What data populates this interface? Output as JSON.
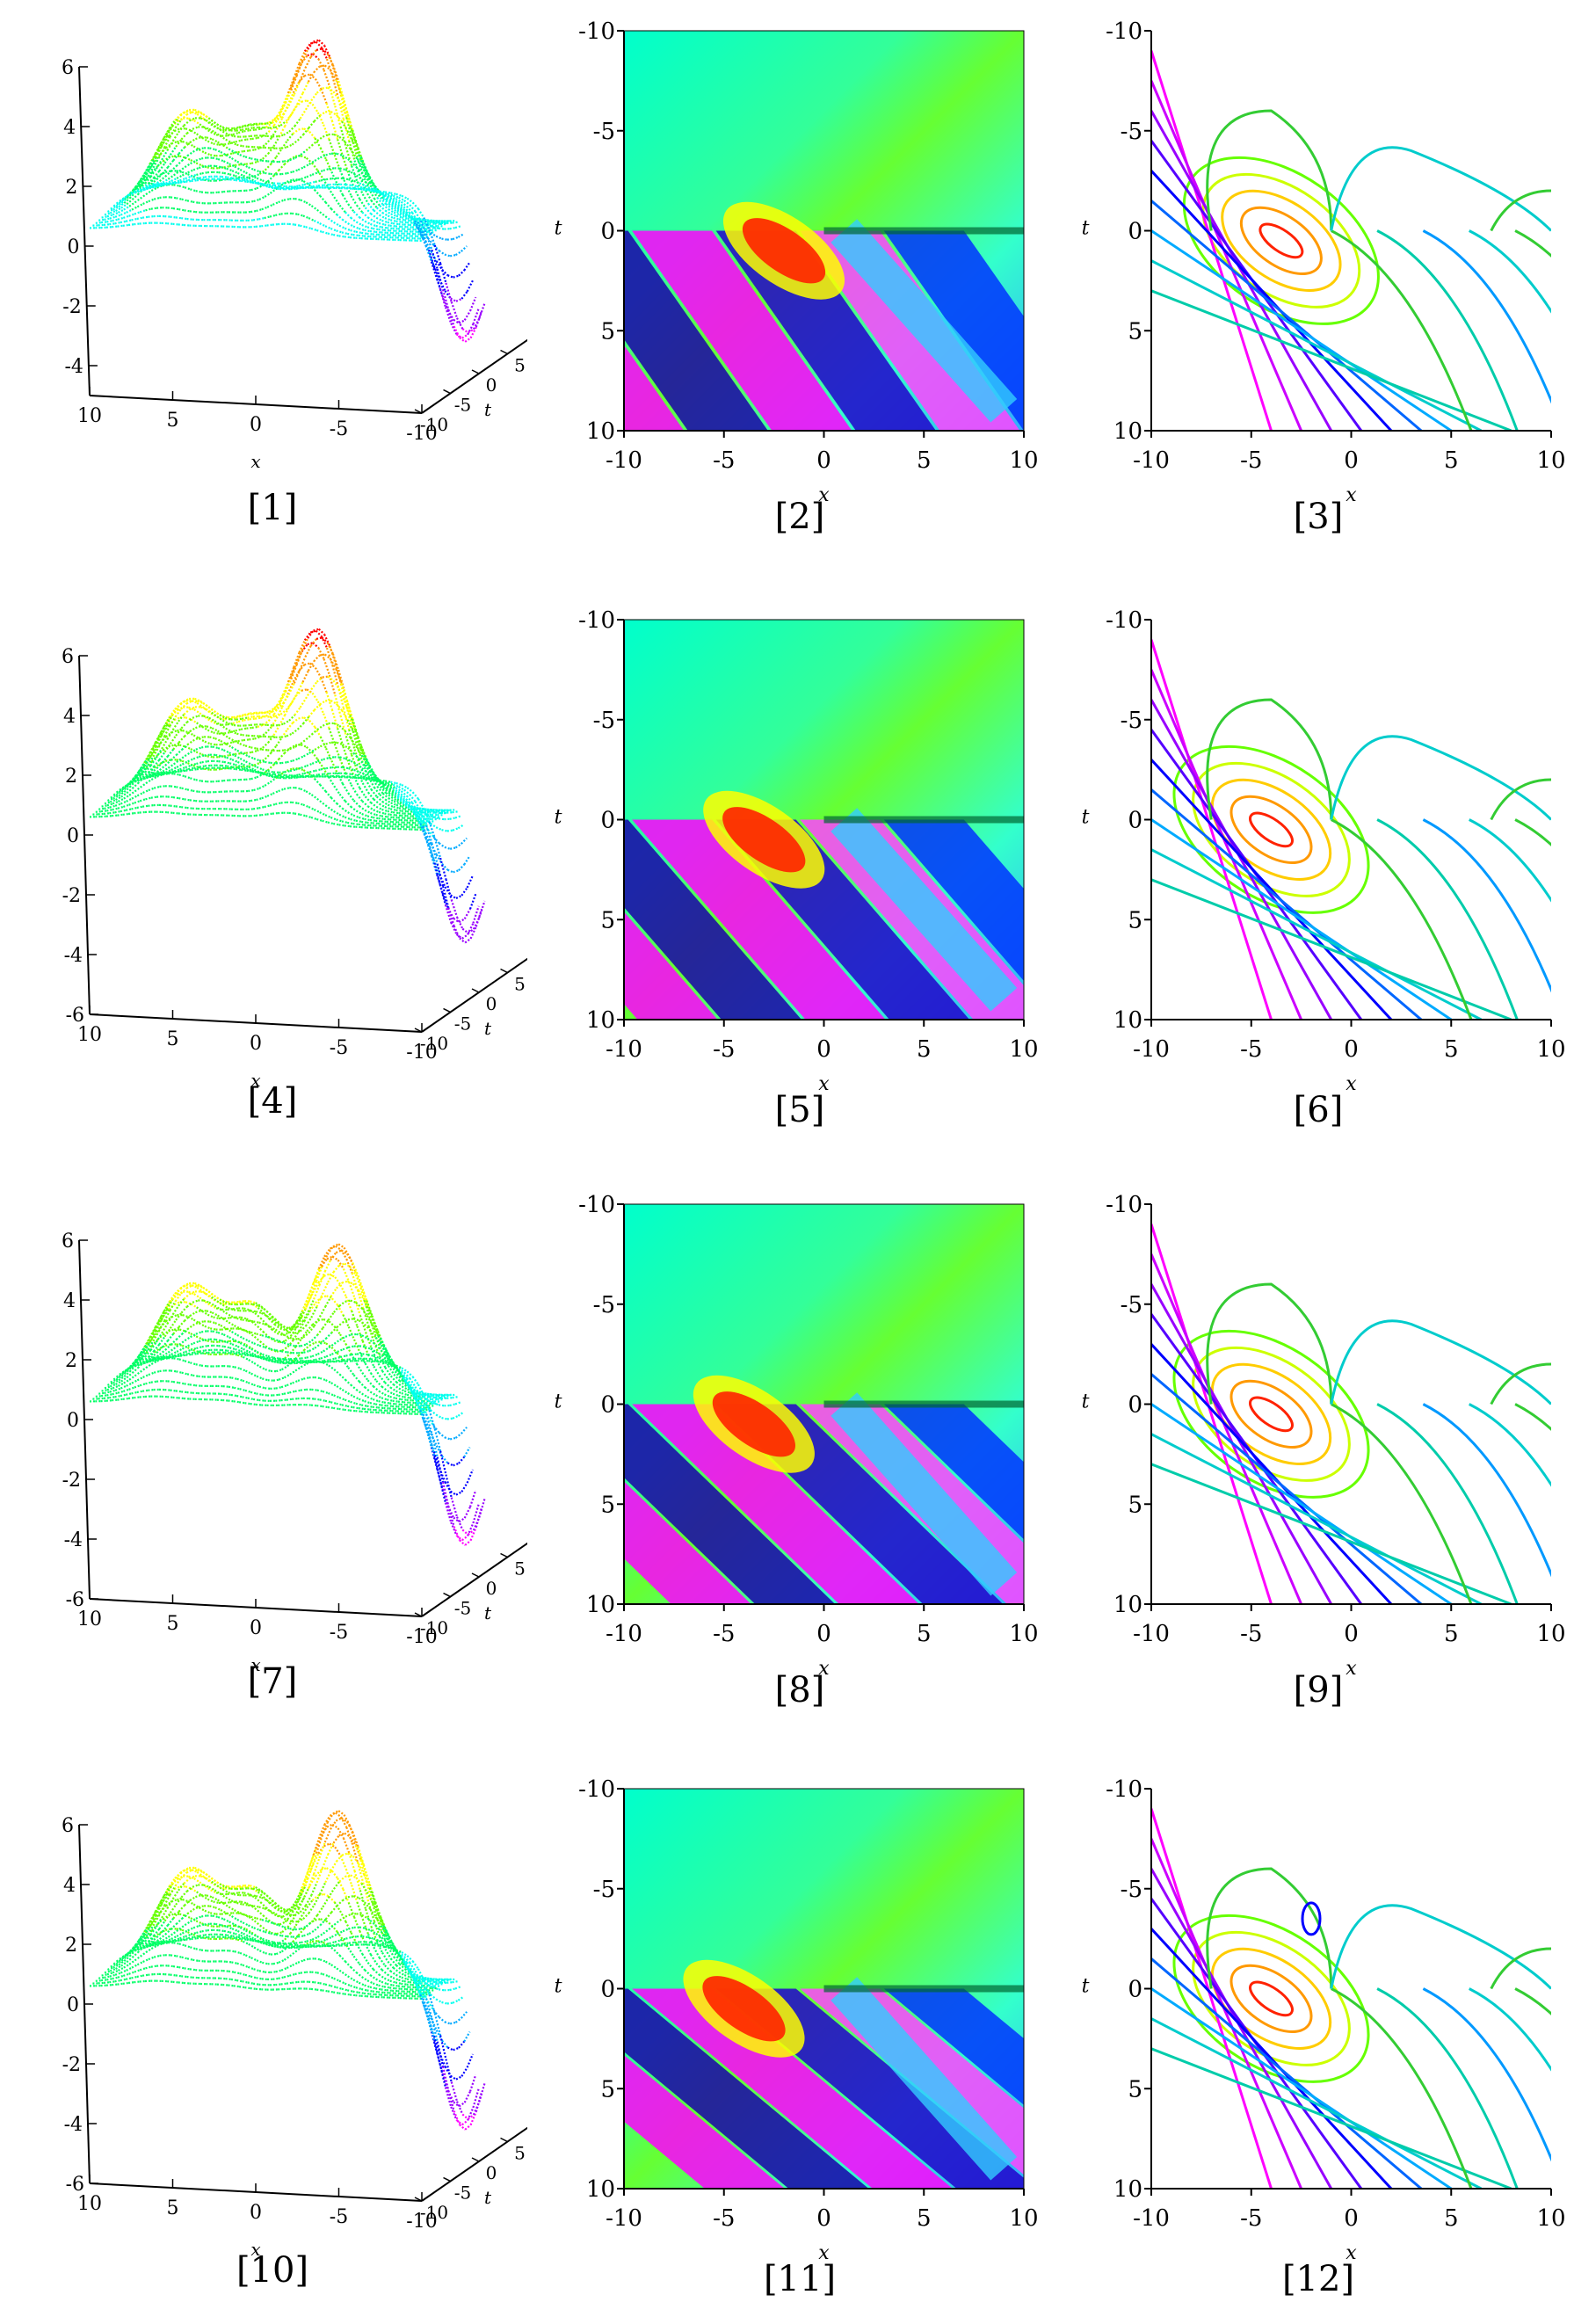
{
  "figure": {
    "captions": [
      "[1]",
      "[2]",
      "[3]",
      "[4]",
      "[5]",
      "[6]",
      "[7]",
      "[8]",
      "[9]",
      "[10]",
      "[11]",
      "[12]"
    ]
  },
  "axes": {
    "x_label": "x",
    "t_label": "t",
    "x_ticks": [
      "-10",
      "-5",
      "0",
      "5",
      "10"
    ],
    "t_ticks": [
      "-10",
      "-5",
      "0",
      "5",
      "10"
    ],
    "surface_x_ticks": [
      "10",
      "5",
      "0",
      "-5",
      "-10"
    ],
    "surface_t_ticks": [
      "-10",
      "-5",
      "0",
      "5",
      "10"
    ],
    "z_ticks_a": [
      "6",
      "4",
      "2",
      "0",
      "-2",
      "-4"
    ],
    "z_ticks_b": [
      "6",
      "4",
      "2",
      "0",
      "-2",
      "-4",
      "-6"
    ]
  },
  "colors": {
    "axis": "#000000",
    "background": "#ffffff",
    "palette": [
      "#ff00ff",
      "#9900ff",
      "#0000ff",
      "#00aaff",
      "#00ffee",
      "#00ff66",
      "#66ff00",
      "#ffff00",
      "#ff9900",
      "#ff0000"
    ]
  },
  "chart_data": [
    {
      "type": "surface",
      "panel": 1,
      "xlabel": "x",
      "ylabel": "t",
      "x_range": [
        10,
        -10
      ],
      "t_range": [
        -10,
        10
      ],
      "z_range": [
        -5,
        6
      ],
      "peak": {
        "x": -2,
        "t": -1,
        "z": 5.8
      },
      "trough": {
        "x": -9,
        "t": 9,
        "z": -4.8
      },
      "row": 1
    },
    {
      "type": "heatmap",
      "panel": 2,
      "xlabel": "x",
      "ylabel": "t",
      "xlim": [
        -10,
        10
      ],
      "ylim": [
        -10,
        10
      ],
      "peak": {
        "x": -2,
        "t": 1,
        "level": "max"
      },
      "row": 1
    },
    {
      "type": "contour",
      "panel": 3,
      "xlabel": "x",
      "ylabel": "t",
      "xlim": [
        -10,
        10
      ],
      "ylim": [
        -10,
        10
      ],
      "peak": {
        "x": -3.5,
        "t": 0.5
      },
      "row": 1
    },
    {
      "type": "surface",
      "panel": 4,
      "xlabel": "x",
      "ylabel": "t",
      "x_range": [
        10,
        -10
      ],
      "t_range": [
        -10,
        10
      ],
      "z_range": [
        -6,
        6
      ],
      "peak": {
        "x": -2,
        "t": -1,
        "z": 5.8
      },
      "trough": {
        "x": -9,
        "t": 9,
        "z": -5.2
      },
      "row": 2
    },
    {
      "type": "heatmap",
      "panel": 5,
      "xlabel": "x",
      "ylabel": "t",
      "xlim": [
        -10,
        10
      ],
      "ylim": [
        -10,
        10
      ],
      "peak": {
        "x": -3,
        "t": 1,
        "level": "max"
      },
      "row": 2
    },
    {
      "type": "contour",
      "panel": 6,
      "xlabel": "x",
      "ylabel": "t",
      "xlim": [
        -10,
        10
      ],
      "ylim": [
        -10,
        10
      ],
      "peak": {
        "x": -4,
        "t": 0.5
      },
      "row": 2
    },
    {
      "type": "surface",
      "panel": 7,
      "xlabel": "x",
      "ylabel": "t",
      "x_range": [
        10,
        -10
      ],
      "t_range": [
        -10,
        10
      ],
      "z_range": [
        -6,
        6
      ],
      "peak": {
        "x": -3,
        "t": 0,
        "z": 4.8
      },
      "trough": {
        "x": -9,
        "t": 9,
        "z": -5.8
      },
      "row": 3
    },
    {
      "type": "heatmap",
      "panel": 8,
      "xlabel": "x",
      "ylabel": "t",
      "xlim": [
        -10,
        10
      ],
      "ylim": [
        -10,
        10
      ],
      "peak": {
        "x": -3.5,
        "t": 1,
        "level": "max"
      },
      "row": 3
    },
    {
      "type": "contour",
      "panel": 9,
      "xlabel": "x",
      "ylabel": "t",
      "xlim": [
        -10,
        10
      ],
      "ylim": [
        -10,
        10
      ],
      "peak": {
        "x": -4,
        "t": 0.5
      },
      "row": 3
    },
    {
      "type": "surface",
      "panel": 10,
      "xlabel": "x",
      "ylabel": "t",
      "x_range": [
        10,
        -10
      ],
      "t_range": [
        -10,
        10
      ],
      "z_range": [
        -6,
        6
      ],
      "peak": {
        "x": -3,
        "t": 0,
        "z": 5.4
      },
      "trough": {
        "x": -9,
        "t": 9,
        "z": -5.8
      },
      "row": 4
    },
    {
      "type": "heatmap",
      "panel": 11,
      "xlabel": "x",
      "ylabel": "t",
      "xlim": [
        -10,
        10
      ],
      "ylim": [
        -10,
        10
      ],
      "peak": {
        "x": -4,
        "t": 1,
        "level": "max"
      },
      "row": 4
    },
    {
      "type": "contour",
      "panel": 12,
      "xlabel": "x",
      "ylabel": "t",
      "xlim": [
        -10,
        10
      ],
      "ylim": [
        -10,
        10
      ],
      "peak": {
        "x": -4,
        "t": 0.5
      },
      "row": 4
    }
  ]
}
